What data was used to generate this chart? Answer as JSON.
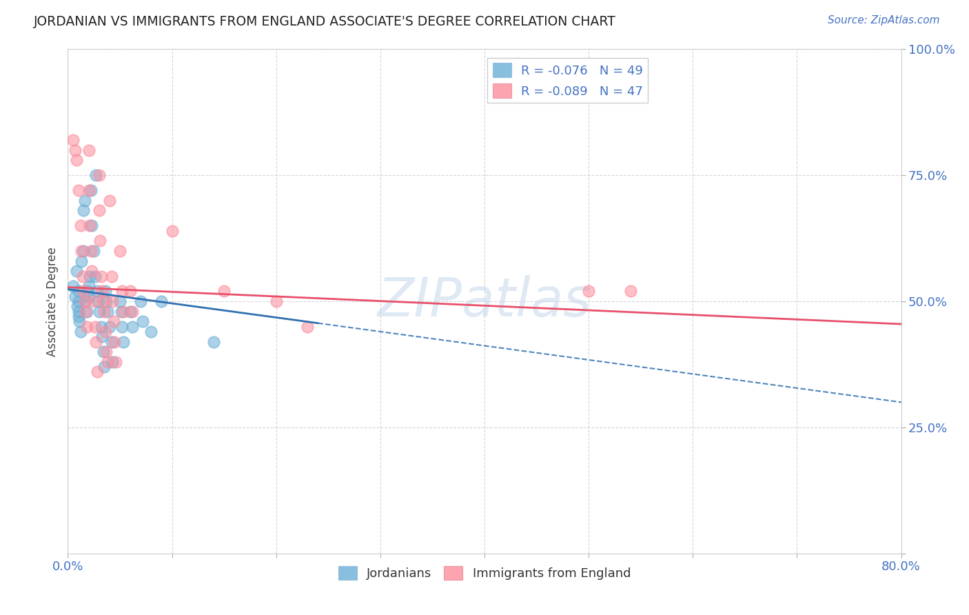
{
  "title": "JORDANIAN VS IMMIGRANTS FROM ENGLAND ASSOCIATE'S DEGREE CORRELATION CHART",
  "source_text": "Source: ZipAtlas.com",
  "ylabel": "Associate's Degree",
  "x_min": 0.0,
  "x_max": 0.8,
  "y_min": 0.0,
  "y_max": 1.0,
  "x_ticks": [
    0.0,
    0.1,
    0.2,
    0.3,
    0.4,
    0.5,
    0.6,
    0.7,
    0.8
  ],
  "y_ticks": [
    0.0,
    0.25,
    0.5,
    0.75,
    1.0
  ],
  "y_tick_labels": [
    "",
    "25.0%",
    "50.0%",
    "75.0%",
    "100.0%"
  ],
  "jordanians_color": "#6baed6",
  "england_color": "#fc8d9c",
  "trendline_jordan_color": "#3070b0",
  "trendline_england_color": "#e8506a",
  "watermark": "ZIPatlas",
  "jordan_R": -0.076,
  "jordan_N": 49,
  "england_R": -0.089,
  "england_N": 47,
  "jordan_scatter": [
    [
      0.005,
      0.53
    ],
    [
      0.007,
      0.51
    ],
    [
      0.008,
      0.56
    ],
    [
      0.009,
      0.49
    ],
    [
      0.01,
      0.48
    ],
    [
      0.01,
      0.47
    ],
    [
      0.01,
      0.5
    ],
    [
      0.01,
      0.52
    ],
    [
      0.011,
      0.46
    ],
    [
      0.012,
      0.44
    ],
    [
      0.013,
      0.58
    ],
    [
      0.015,
      0.6
    ],
    [
      0.015,
      0.68
    ],
    [
      0.016,
      0.7
    ],
    [
      0.017,
      0.5
    ],
    [
      0.018,
      0.48
    ],
    [
      0.019,
      0.52
    ],
    [
      0.02,
      0.51
    ],
    [
      0.02,
      0.53
    ],
    [
      0.021,
      0.55
    ],
    [
      0.022,
      0.72
    ],
    [
      0.023,
      0.65
    ],
    [
      0.025,
      0.6
    ],
    [
      0.026,
      0.55
    ],
    [
      0.027,
      0.75
    ],
    [
      0.028,
      0.52
    ],
    [
      0.029,
      0.5
    ],
    [
      0.03,
      0.48
    ],
    [
      0.032,
      0.45
    ],
    [
      0.033,
      0.43
    ],
    [
      0.034,
      0.4
    ],
    [
      0.035,
      0.37
    ],
    [
      0.036,
      0.52
    ],
    [
      0.037,
      0.5
    ],
    [
      0.038,
      0.48
    ],
    [
      0.04,
      0.45
    ],
    [
      0.042,
      0.42
    ],
    [
      0.043,
      0.38
    ],
    [
      0.05,
      0.5
    ],
    [
      0.051,
      0.48
    ],
    [
      0.052,
      0.45
    ],
    [
      0.053,
      0.42
    ],
    [
      0.06,
      0.48
    ],
    [
      0.062,
      0.45
    ],
    [
      0.07,
      0.5
    ],
    [
      0.072,
      0.46
    ],
    [
      0.08,
      0.44
    ],
    [
      0.09,
      0.5
    ],
    [
      0.14,
      0.42
    ]
  ],
  "england_scatter": [
    [
      0.005,
      0.82
    ],
    [
      0.007,
      0.8
    ],
    [
      0.008,
      0.78
    ],
    [
      0.01,
      0.72
    ],
    [
      0.012,
      0.65
    ],
    [
      0.013,
      0.6
    ],
    [
      0.014,
      0.55
    ],
    [
      0.015,
      0.52
    ],
    [
      0.016,
      0.5
    ],
    [
      0.017,
      0.48
    ],
    [
      0.018,
      0.45
    ],
    [
      0.02,
      0.8
    ],
    [
      0.02,
      0.72
    ],
    [
      0.021,
      0.65
    ],
    [
      0.022,
      0.6
    ],
    [
      0.023,
      0.56
    ],
    [
      0.025,
      0.5
    ],
    [
      0.026,
      0.45
    ],
    [
      0.027,
      0.42
    ],
    [
      0.028,
      0.36
    ],
    [
      0.03,
      0.75
    ],
    [
      0.03,
      0.68
    ],
    [
      0.031,
      0.62
    ],
    [
      0.032,
      0.55
    ],
    [
      0.033,
      0.52
    ],
    [
      0.034,
      0.5
    ],
    [
      0.035,
      0.48
    ],
    [
      0.036,
      0.44
    ],
    [
      0.037,
      0.4
    ],
    [
      0.038,
      0.38
    ],
    [
      0.04,
      0.7
    ],
    [
      0.042,
      0.55
    ],
    [
      0.043,
      0.5
    ],
    [
      0.044,
      0.46
    ],
    [
      0.045,
      0.42
    ],
    [
      0.046,
      0.38
    ],
    [
      0.05,
      0.6
    ],
    [
      0.052,
      0.52
    ],
    [
      0.053,
      0.48
    ],
    [
      0.06,
      0.52
    ],
    [
      0.062,
      0.48
    ],
    [
      0.1,
      0.64
    ],
    [
      0.15,
      0.52
    ],
    [
      0.2,
      0.5
    ],
    [
      0.23,
      0.45
    ],
    [
      0.5,
      0.52
    ],
    [
      0.54,
      0.52
    ]
  ],
  "jordan_trend_x0": 0.0,
  "jordan_trend_y0": 0.524,
  "jordan_trend_x1": 0.8,
  "jordan_trend_y1": 0.3,
  "england_trend_x0": 0.0,
  "england_trend_y0": 0.528,
  "england_trend_x1": 0.8,
  "england_trend_y1": 0.455
}
